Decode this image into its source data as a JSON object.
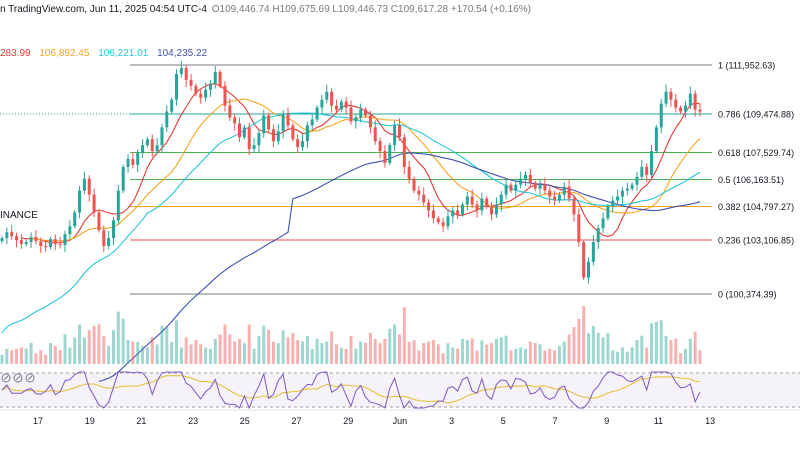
{
  "header": {
    "source": "n TradingView.com, Jun 11, 2025 04:54 UTC-4",
    "ohlc": "O109,446.74  H109,675.69  L109,446.73  C109,617.28  +170.54 (+0.16%)",
    "exchange": "INANCE"
  },
  "indicators": {
    "ma1": {
      "text": "283.99",
      "color": "#e53935"
    },
    "ma2": {
      "text": "106,892.45",
      "color": "#f5a623"
    },
    "ma3": {
      "text": "106,221.01",
      "color": "#26c6da"
    },
    "ma4": {
      "text": "104,235.22",
      "color": "#3f51b5"
    }
  },
  "colors": {
    "up": "#26a69a",
    "down": "#ef5350",
    "rsi": "#7e57c2",
    "rsi_ma": "#e6c33c"
  },
  "chart_data": {
    "type": "candlestick",
    "x_ticks": [
      "17",
      "19",
      "21",
      "23",
      "25",
      "27",
      "29",
      "Jun",
      "3",
      "5",
      "7",
      "9",
      "11",
      "13"
    ],
    "fib_levels": [
      {
        "label": "1 (111,952.63)",
        "value": 111952.63,
        "color": "#787b86"
      },
      {
        "label": "0.786 (109,474.88)",
        "value": 109474.88,
        "color": "#26a69a"
      },
      {
        "label": "0.618 (107,529.74)",
        "value": 107529.74,
        "color": "#4caf50"
      },
      {
        "label": "0.5 (106,163.51)",
        "value": 106163.51,
        "color": "#4caf50"
      },
      {
        "label": "0.382 (104,797.27)",
        "value": 104797.27,
        "color": "#f5a623"
      },
      {
        "label": "0.236 (103,106.85)",
        "value": 103106.85,
        "color": "#ef5350"
      },
      {
        "label": "0 (100,374.39)",
        "value": 100374.39,
        "color": "#787b86"
      }
    ],
    "closes": [
      103200,
      103500,
      103300,
      103100,
      102900,
      103000,
      103250,
      103050,
      102800,
      102750,
      103150,
      102900,
      102850,
      103400,
      103800,
      104500,
      105600,
      106200,
      105400,
      104500,
      103600,
      102800,
      103200,
      104100,
      105600,
      106800,
      107200,
      106900,
      107500,
      107900,
      108200,
      107600,
      107900,
      108800,
      109600,
      110200,
      111500,
      111800,
      111200,
      110900,
      110500,
      110300,
      110700,
      111000,
      111600,
      110900,
      109900,
      109300,
      109000,
      108300,
      108800,
      107700,
      107900,
      108500,
      109400,
      108700,
      108100,
      108600,
      109500,
      108900,
      108200,
      107800,
      108100,
      108900,
      109200,
      109800,
      110200,
      110600,
      109900,
      109700,
      110100,
      109800,
      109100,
      109300,
      109700,
      109400,
      108800,
      108100,
      107600,
      107000,
      107900,
      108900,
      108300,
      106800,
      106200,
      105600,
      105400,
      105000,
      104600,
      104200,
      104000,
      103800,
      104300,
      104600,
      104400,
      104900,
      105300,
      104900,
      104600,
      105200,
      104800,
      104400,
      104900,
      105400,
      105900,
      105600,
      105900,
      106200,
      106400,
      106000,
      105700,
      105900,
      105600,
      105300,
      105100,
      105400,
      105800,
      105200,
      104400,
      103000,
      101200,
      102000,
      103000,
      103700,
      104200,
      104800,
      105100,
      105300,
      105600,
      105700,
      105900,
      106300,
      106800,
      106400,
      107600,
      108800,
      110000,
      110600,
      110200,
      109800,
      109600,
      109900,
      110500,
      109700,
      109600
    ]
  }
}
